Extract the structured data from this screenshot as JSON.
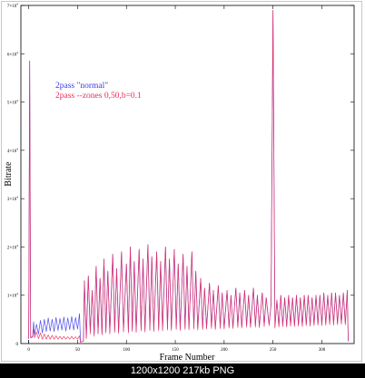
{
  "caption": "1200x1200 217kb PNG",
  "colors": {
    "normal": "#3a3aee",
    "zones": "#ee2a5a",
    "background": "#ffffff",
    "caption_bg": "#000000",
    "caption_fg": "#ffffff"
  },
  "chart_data": {
    "type": "line",
    "xlabel": "Frame Number",
    "ylabel": "Bitrate",
    "xlim": [
      -8,
      333
    ],
    "ylim": [
      0,
      70000
    ],
    "x_ticks": [
      0,
      50,
      100,
      150,
      200,
      250,
      300
    ],
    "y_ticks": [
      {
        "value": 10000,
        "base": "1",
        "exp": "4"
      },
      {
        "value": 20000,
        "base": "2",
        "exp": "4"
      },
      {
        "value": 30000,
        "base": "3",
        "exp": "4"
      },
      {
        "value": 40000,
        "base": "4",
        "exp": "4"
      },
      {
        "value": 50000,
        "base": "5",
        "exp": "4"
      },
      {
        "value": 60000,
        "base": "6",
        "exp": "4"
      },
      {
        "value": 70000,
        "base": "7",
        "exp": "4"
      }
    ],
    "grid": false,
    "legend": "top-left",
    "series": [
      {
        "name": "2pass \"normal\"",
        "key": "normal",
        "points": [
          [
            0,
            1000
          ],
          [
            1,
            58500
          ],
          [
            2,
            1200
          ],
          [
            4,
            1500
          ],
          [
            5,
            4500
          ],
          [
            6,
            1800
          ],
          [
            8,
            4000
          ],
          [
            10,
            2000
          ],
          [
            12,
            4800
          ],
          [
            14,
            2200
          ],
          [
            16,
            5000
          ],
          [
            18,
            2500
          ],
          [
            20,
            5300
          ],
          [
            22,
            2600
          ],
          [
            24,
            5000
          ],
          [
            26,
            2500
          ],
          [
            28,
            5400
          ],
          [
            30,
            2700
          ],
          [
            32,
            5200
          ],
          [
            34,
            2800
          ],
          [
            36,
            5500
          ],
          [
            38,
            2600
          ],
          [
            40,
            5300
          ],
          [
            42,
            2900
          ],
          [
            44,
            5600
          ],
          [
            46,
            2800
          ],
          [
            48,
            5400
          ],
          [
            50,
            3000
          ],
          [
            52,
            6200
          ],
          [
            53,
            300
          ],
          [
            56,
            500
          ],
          [
            57,
            13000
          ],
          [
            59,
            1200
          ],
          [
            61,
            14000
          ],
          [
            63,
            2500
          ],
          [
            65,
            11000
          ],
          [
            67,
            1800
          ],
          [
            69,
            16000
          ],
          [
            71,
            2200
          ],
          [
            73,
            13500
          ],
          [
            75,
            2000
          ],
          [
            77,
            17500
          ],
          [
            79,
            2500
          ],
          [
            81,
            15000
          ],
          [
            83,
            2300
          ],
          [
            86,
            18500
          ],
          [
            88,
            2600
          ],
          [
            90,
            15500
          ],
          [
            92,
            2400
          ],
          [
            95,
            19000
          ],
          [
            97,
            2700
          ],
          [
            100,
            16500
          ],
          [
            102,
            2500
          ],
          [
            104,
            20000
          ],
          [
            106,
            2800
          ],
          [
            108,
            17000
          ],
          [
            110,
            2600
          ],
          [
            113,
            19500
          ],
          [
            115,
            2900
          ],
          [
            117,
            17500
          ],
          [
            119,
            2700
          ],
          [
            122,
            20500
          ],
          [
            124,
            3000
          ],
          [
            126,
            18000
          ],
          [
            128,
            2800
          ],
          [
            131,
            19000
          ],
          [
            133,
            3000
          ],
          [
            135,
            17000
          ],
          [
            137,
            2900
          ],
          [
            140,
            20000
          ],
          [
            142,
            3100
          ],
          [
            144,
            17500
          ],
          [
            146,
            3000
          ],
          [
            149,
            19500
          ],
          [
            151,
            3200
          ],
          [
            153,
            16500
          ],
          [
            155,
            3000
          ],
          [
            158,
            18500
          ],
          [
            160,
            3200
          ],
          [
            162,
            16000
          ],
          [
            164,
            3100
          ],
          [
            167,
            19000
          ],
          [
            169,
            3300
          ],
          [
            171,
            15000
          ],
          [
            173,
            3100
          ],
          [
            176,
            13500
          ],
          [
            178,
            3200
          ],
          [
            180,
            11500
          ],
          [
            182,
            3300
          ],
          [
            185,
            12500
          ],
          [
            187,
            3400
          ],
          [
            189,
            11000
          ],
          [
            191,
            3200
          ],
          [
            194,
            12000
          ],
          [
            196,
            3400
          ],
          [
            198,
            10500
          ],
          [
            200,
            3300
          ],
          [
            203,
            11000
          ],
          [
            205,
            3500
          ],
          [
            207,
            10000
          ],
          [
            209,
            3400
          ],
          [
            212,
            11500
          ],
          [
            214,
            3600
          ],
          [
            216,
            10500
          ],
          [
            218,
            3500
          ],
          [
            221,
            11000
          ],
          [
            223,
            3700
          ],
          [
            225,
            10000
          ],
          [
            227,
            3600
          ],
          [
            230,
            11500
          ],
          [
            232,
            3700
          ],
          [
            234,
            10000
          ],
          [
            236,
            3600
          ],
          [
            239,
            10500
          ],
          [
            241,
            3800
          ],
          [
            243,
            9500
          ],
          [
            246,
            4000
          ],
          [
            248,
            8000
          ],
          [
            250,
            69000
          ],
          [
            252,
            3500
          ],
          [
            254,
            9000
          ],
          [
            256,
            3700
          ],
          [
            258,
            10000
          ],
          [
            260,
            3800
          ],
          [
            262,
            9500
          ],
          [
            264,
            3700
          ],
          [
            266,
            10000
          ],
          [
            268,
            3900
          ],
          [
            270,
            9500
          ],
          [
            272,
            3800
          ],
          [
            274,
            10000
          ],
          [
            276,
            3900
          ],
          [
            278,
            9500
          ],
          [
            280,
            3800
          ],
          [
            282,
            10000
          ],
          [
            284,
            4000
          ],
          [
            286,
            10000
          ],
          [
            288,
            3900
          ],
          [
            290,
            9500
          ],
          [
            292,
            4000
          ],
          [
            294,
            10000
          ],
          [
            296,
            4100
          ],
          [
            298,
            10000
          ],
          [
            300,
            4000
          ],
          [
            302,
            10500
          ],
          [
            304,
            4100
          ],
          [
            306,
            10000
          ],
          [
            308,
            4200
          ],
          [
            310,
            10500
          ],
          [
            312,
            4100
          ],
          [
            314,
            10500
          ],
          [
            316,
            4200
          ],
          [
            318,
            10000
          ],
          [
            320,
            4300
          ],
          [
            322,
            10500
          ],
          [
            324,
            4200
          ],
          [
            326,
            11000
          ],
          [
            327,
            500
          ]
        ]
      },
      {
        "name": "2pass --zones 0,50,b=0.1",
        "key": "zones",
        "points": [
          [
            0,
            1000
          ],
          [
            1,
            58500
          ],
          [
            2,
            1200
          ],
          [
            4,
            1300
          ],
          [
            5,
            3000
          ],
          [
            6,
            1200
          ],
          [
            8,
            2400
          ],
          [
            10,
            1000
          ],
          [
            12,
            2200
          ],
          [
            14,
            900
          ],
          [
            16,
            2000
          ],
          [
            18,
            900
          ],
          [
            20,
            1800
          ],
          [
            22,
            900
          ],
          [
            24,
            1700
          ],
          [
            26,
            900
          ],
          [
            28,
            1600
          ],
          [
            30,
            900
          ],
          [
            32,
            1500
          ],
          [
            34,
            900
          ],
          [
            36,
            1500
          ],
          [
            38,
            900
          ],
          [
            40,
            1400
          ],
          [
            42,
            900
          ],
          [
            44,
            1500
          ],
          [
            46,
            900
          ],
          [
            48,
            1400
          ],
          [
            50,
            900
          ],
          [
            52,
            1600
          ],
          [
            53,
            300
          ],
          [
            56,
            500
          ],
          [
            57,
            13000
          ],
          [
            59,
            1000
          ],
          [
            61,
            14000
          ],
          [
            63,
            2000
          ],
          [
            65,
            11000
          ],
          [
            67,
            1500
          ],
          [
            69,
            16000
          ],
          [
            71,
            2000
          ],
          [
            73,
            13500
          ],
          [
            75,
            1800
          ],
          [
            77,
            17500
          ],
          [
            79,
            2200
          ],
          [
            81,
            15000
          ],
          [
            83,
            2000
          ],
          [
            86,
            18500
          ],
          [
            88,
            2300
          ],
          [
            90,
            15500
          ],
          [
            92,
            2100
          ],
          [
            95,
            19000
          ],
          [
            97,
            2400
          ],
          [
            100,
            16500
          ],
          [
            102,
            2200
          ],
          [
            104,
            20000
          ],
          [
            106,
            2500
          ],
          [
            108,
            17000
          ],
          [
            110,
            2300
          ],
          [
            113,
            19500
          ],
          [
            115,
            2600
          ],
          [
            117,
            17500
          ],
          [
            119,
            2400
          ],
          [
            122,
            20500
          ],
          [
            124,
            2700
          ],
          [
            126,
            18000
          ],
          [
            128,
            2500
          ],
          [
            131,
            19000
          ],
          [
            133,
            2700
          ],
          [
            135,
            17000
          ],
          [
            137,
            2600
          ],
          [
            140,
            20000
          ],
          [
            142,
            2800
          ],
          [
            144,
            17500
          ],
          [
            146,
            2700
          ],
          [
            149,
            19500
          ],
          [
            151,
            2900
          ],
          [
            153,
            16500
          ],
          [
            155,
            2700
          ],
          [
            158,
            18500
          ],
          [
            160,
            2900
          ],
          [
            162,
            16000
          ],
          [
            164,
            2800
          ],
          [
            167,
            19000
          ],
          [
            169,
            3000
          ],
          [
            171,
            15000
          ],
          [
            173,
            2800
          ],
          [
            176,
            13500
          ],
          [
            178,
            2900
          ],
          [
            180,
            11500
          ],
          [
            182,
            3000
          ],
          [
            185,
            12500
          ],
          [
            187,
            3100
          ],
          [
            189,
            11000
          ],
          [
            191,
            2900
          ],
          [
            194,
            12000
          ],
          [
            196,
            3100
          ],
          [
            198,
            10500
          ],
          [
            200,
            3000
          ],
          [
            203,
            11000
          ],
          [
            205,
            3200
          ],
          [
            207,
            10000
          ],
          [
            209,
            3100
          ],
          [
            212,
            11500
          ],
          [
            214,
            3300
          ],
          [
            216,
            10500
          ],
          [
            218,
            3200
          ],
          [
            221,
            11000
          ],
          [
            223,
            3400
          ],
          [
            225,
            10000
          ],
          [
            227,
            3300
          ],
          [
            230,
            11500
          ],
          [
            232,
            3400
          ],
          [
            234,
            10000
          ],
          [
            236,
            3300
          ],
          [
            239,
            10500
          ],
          [
            241,
            3500
          ],
          [
            243,
            9500
          ],
          [
            246,
            3700
          ],
          [
            248,
            8000
          ],
          [
            250,
            69000
          ],
          [
            252,
            3200
          ],
          [
            254,
            9000
          ],
          [
            256,
            3400
          ],
          [
            258,
            10000
          ],
          [
            260,
            3500
          ],
          [
            262,
            9500
          ],
          [
            264,
            3400
          ],
          [
            266,
            10000
          ],
          [
            268,
            3600
          ],
          [
            270,
            9500
          ],
          [
            272,
            3500
          ],
          [
            274,
            10000
          ],
          [
            276,
            3600
          ],
          [
            278,
            9500
          ],
          [
            280,
            3500
          ],
          [
            282,
            10000
          ],
          [
            284,
            3700
          ],
          [
            286,
            10000
          ],
          [
            288,
            3600
          ],
          [
            290,
            9500
          ],
          [
            292,
            3700
          ],
          [
            294,
            10000
          ],
          [
            296,
            3800
          ],
          [
            298,
            10000
          ],
          [
            300,
            3700
          ],
          [
            302,
            10500
          ],
          [
            304,
            3800
          ],
          [
            306,
            10000
          ],
          [
            308,
            3900
          ],
          [
            310,
            10500
          ],
          [
            312,
            3800
          ],
          [
            314,
            10500
          ],
          [
            316,
            3900
          ],
          [
            318,
            10000
          ],
          [
            320,
            4000
          ],
          [
            322,
            10500
          ],
          [
            324,
            3900
          ],
          [
            326,
            11000
          ],
          [
            327,
            500
          ]
        ]
      }
    ]
  }
}
